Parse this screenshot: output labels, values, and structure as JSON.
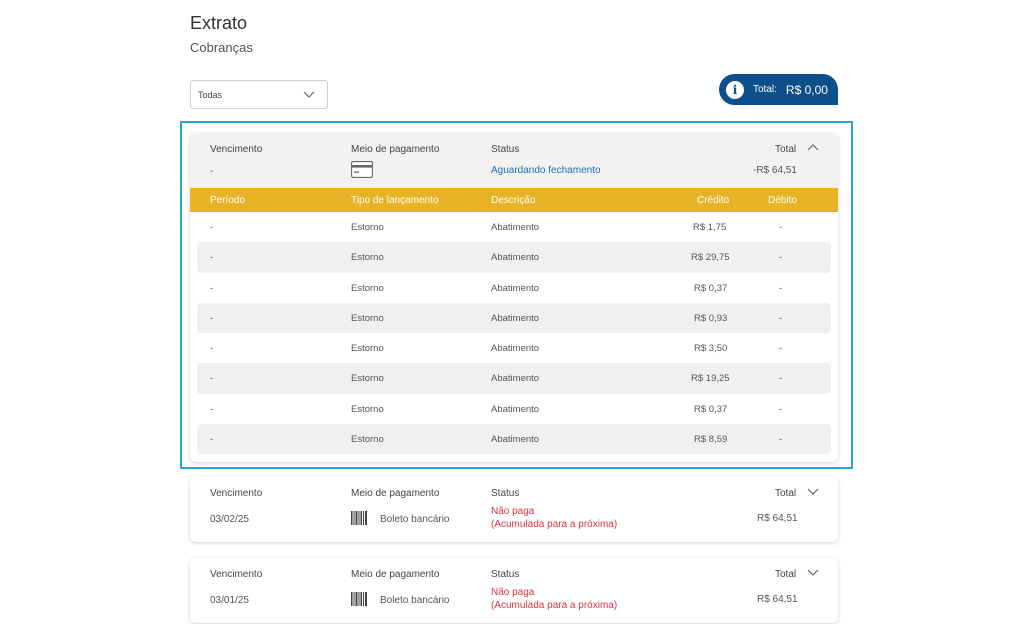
{
  "header": {
    "title": "Extrato",
    "subtitle": "Cobranças"
  },
  "filter": {
    "selected": "Todas"
  },
  "total": {
    "label": "Total:",
    "value": "R$  0,00"
  },
  "columns": {
    "vencimento": "Vencimento",
    "meio": "Meio de pagamento",
    "status": "Status",
    "total": "Total"
  },
  "detail_columns": {
    "periodo": "Período",
    "tipo": "Tipo de lançamento",
    "descricao": "Descrição",
    "credito": "Crédito",
    "debito": "Débito"
  },
  "cards": [
    {
      "vencimento": "-",
      "meio_icon": "credit-card-icon",
      "meio_label": "",
      "status_line1": "Aguardando fechamento",
      "status_line2": "",
      "total": "-R$ 64,51",
      "expanded": true,
      "rows": [
        {
          "periodo": "-",
          "tipo": "Estorno",
          "descricao": "Abatimento",
          "credito": "R$  1,75",
          "debito": "-"
        },
        {
          "periodo": "-",
          "tipo": "Estorno",
          "descricao": "Abatimento",
          "credito": "R$  29,75",
          "debito": "-"
        },
        {
          "periodo": "-",
          "tipo": "Estorno",
          "descricao": "Abatimento",
          "credito": "R$  0,37",
          "debito": "-"
        },
        {
          "periodo": "-",
          "tipo": "Estorno",
          "descricao": "Abatimento",
          "credito": "R$  0,93",
          "debito": "-"
        },
        {
          "periodo": "-",
          "tipo": "Estorno",
          "descricao": "Abatimento",
          "credito": "R$  3,50",
          "debito": "-"
        },
        {
          "periodo": "-",
          "tipo": "Estorno",
          "descricao": "Abatimento",
          "credito": "R$  19,25",
          "debito": "-"
        },
        {
          "periodo": "-",
          "tipo": "Estorno",
          "descricao": "Abatimento",
          "credito": "R$  0,37",
          "debito": "-"
        },
        {
          "periodo": "-",
          "tipo": "Estorno",
          "descricao": "Abatimento",
          "credito": "R$  8,59",
          "debito": "-"
        }
      ]
    },
    {
      "vencimento": "03/02/25",
      "meio_icon": "barcode-icon",
      "meio_label": "Boleto bancário",
      "status_line1": "Não paga",
      "status_line2": "(Acumulada para a próxima)",
      "total": "R$ 64,51",
      "expanded": false
    },
    {
      "vencimento": "03/01/25",
      "meio_icon": "barcode-icon",
      "meio_label": "Boleto bancário",
      "status_line1": "Não paga",
      "status_line2": "(Acumulada para a próxima)",
      "total": "R$ 64,51",
      "expanded": false
    }
  ],
  "colors": {
    "brand_blue": "#0c4f8a",
    "detail_header": "#e8b226",
    "focus_border": "#27a9c9",
    "status_pending": "#1f6fb6",
    "status_unpaid": "#d9363e"
  }
}
